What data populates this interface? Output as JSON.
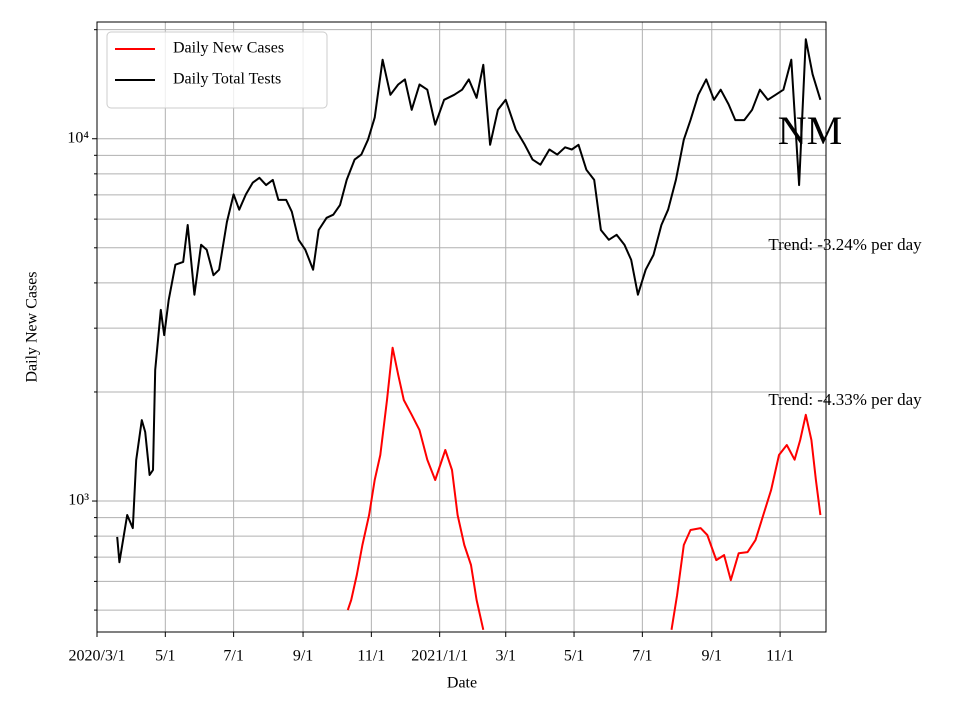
{
  "chart_data": {
    "type": "line",
    "xlabel": "Date",
    "ylabel": "Daily New Cases",
    "log_scale_y": true,
    "grid": true,
    "legend": "upper left",
    "xlim": [
      "2020-03-01",
      "2021-12-12"
    ],
    "xticks": [
      {
        "value": "2020-03-01",
        "label": "2020/3/1"
      },
      {
        "value": "2020-05-01",
        "label": "5/1"
      },
      {
        "value": "2020-07-01",
        "label": "7/1"
      },
      {
        "value": "2020-09-01",
        "label": "9/1"
      },
      {
        "value": "2020-11-01",
        "label": "11/1"
      },
      {
        "value": "2021-01-01",
        "label": "2021/1/1"
      },
      {
        "value": "2021-03-01",
        "label": "3/1"
      },
      {
        "value": "2021-05-01",
        "label": "5/1"
      },
      {
        "value": "2021-07-01",
        "label": "7/1"
      },
      {
        "value": "2021-09-01",
        "label": "9/1"
      },
      {
        "value": "2021-11-01",
        "label": "11/1"
      }
    ],
    "ylim": [
      435,
      21000
    ],
    "yticks": [
      {
        "value": 1000,
        "label": "10³"
      },
      {
        "value": 10000,
        "label": "10⁴"
      }
    ],
    "yminorticks": [
      500,
      600,
      700,
      800,
      900,
      2000,
      3000,
      4000,
      5000,
      6000,
      7000,
      8000,
      9000,
      20000
    ],
    "annotations": [
      "NM",
      "Trend: -3.24% per day",
      "Trend: -4.33% per day"
    ],
    "series": [
      {
        "name": "Daily New Cases",
        "color": "#ff0000",
        "x": [
          "2020-10-11",
          "2020-10-14",
          "2020-10-19",
          "2020-10-24",
          "2020-10-30",
          "2020-11-04",
          "2020-11-09",
          "2020-11-15",
          "2020-11-20",
          "2020-11-25",
          "2020-11-30",
          "2020-12-07",
          "2020-12-14",
          "2020-12-21",
          "2020-12-28",
          "2021-01-06",
          "2021-01-12",
          "2021-01-17",
          "2021-01-23",
          "2021-01-29",
          "2021-02-03",
          "2021-02-09",
          "2021-05-01",
          "2021-07-27",
          "2021-08-01",
          "2021-08-07",
          "2021-08-13",
          "2021-08-22",
          "2021-08-28",
          "2021-09-05",
          "2021-09-12",
          "2021-09-18",
          "2021-09-25",
          "2021-10-03",
          "2021-10-10",
          "2021-10-17",
          "2021-10-24",
          "2021-10-31",
          "2021-11-07",
          "2021-11-14",
          "2021-11-19",
          "2021-11-24",
          "2021-11-29",
          "2021-12-03",
          "2021-12-07"
        ],
        "values": [
          500,
          533,
          625,
          756,
          915,
          1143,
          1340,
          1900,
          2650,
          2230,
          1900,
          1730,
          1570,
          1300,
          1143,
          1383,
          1218,
          915,
          756,
          666,
          533,
          441,
          null,
          441,
          550,
          756,
          832,
          842,
          806,
          687,
          709,
          605,
          718,
          723,
          780,
          915,
          1072,
          1340,
          1428,
          1300,
          1474,
          1730,
          1474,
          1143,
          915
        ]
      },
      {
        "name": "Daily Total Tests",
        "color": "#000000",
        "x": [
          "2020-03-19",
          "2020-03-21",
          "2020-03-28",
          "2020-04-02",
          "2020-04-05",
          "2020-04-10",
          "2020-04-13",
          "2020-04-17",
          "2020-04-20",
          "2020-04-22",
          "2020-04-27",
          "2020-04-30",
          "2020-05-04",
          "2020-05-10",
          "2020-05-17",
          "2020-05-21",
          "2020-05-27",
          "2020-06-02",
          "2020-06-07",
          "2020-06-13",
          "2020-06-18",
          "2020-06-25",
          "2020-07-01",
          "2020-07-06",
          "2020-07-12",
          "2020-07-18",
          "2020-07-24",
          "2020-07-30",
          "2020-08-05",
          "2020-08-10",
          "2020-08-17",
          "2020-08-22",
          "2020-08-28",
          "2020-09-03",
          "2020-09-10",
          "2020-09-15",
          "2020-09-22",
          "2020-09-28",
          "2020-10-04",
          "2020-10-10",
          "2020-10-17",
          "2020-10-23",
          "2020-10-29",
          "2020-11-04",
          "2020-11-11",
          "2020-11-18",
          "2020-11-25",
          "2020-12-01",
          "2020-12-07",
          "2020-12-14",
          "2020-12-21",
          "2020-12-28",
          "2021-01-05",
          "2021-01-14",
          "2021-01-21",
          "2021-01-27",
          "2021-02-03",
          "2021-02-09",
          "2021-02-15",
          "2021-02-22",
          "2021-03-01",
          "2021-03-10",
          "2021-03-18",
          "2021-03-25",
          "2021-04-01",
          "2021-04-09",
          "2021-04-16",
          "2021-04-23",
          "2021-04-29",
          "2021-05-05",
          "2021-05-12",
          "2021-05-19",
          "2021-05-25",
          "2021-06-01",
          "2021-06-08",
          "2021-06-15",
          "2021-06-21",
          "2021-06-27",
          "2021-07-04",
          "2021-07-11",
          "2021-07-18",
          "2021-07-24",
          "2021-07-31",
          "2021-08-07",
          "2021-08-13",
          "2021-08-20",
          "2021-08-27",
          "2021-09-03",
          "2021-09-09",
          "2021-09-16",
          "2021-09-22",
          "2021-09-30",
          "2021-10-07",
          "2021-10-14",
          "2021-10-21",
          "2021-10-28",
          "2021-11-04",
          "2021-11-11",
          "2021-11-18",
          "2021-11-24",
          "2021-11-30",
          "2021-12-07"
        ],
        "values": [
          796,
          678,
          915,
          842,
          1298,
          1673,
          1551,
          1180,
          1218,
          2300,
          3370,
          2870,
          3590,
          4490,
          4570,
          5780,
          3710,
          5100,
          4940,
          4200,
          4350,
          5890,
          7020,
          6370,
          7020,
          7560,
          7800,
          7450,
          7700,
          6780,
          6780,
          6290,
          5260,
          4940,
          4350,
          5600,
          6050,
          6170,
          6560,
          7700,
          8760,
          9040,
          9940,
          11440,
          16530,
          13220,
          14120,
          14580,
          12020,
          14120,
          13660,
          10930,
          12810,
          13220,
          13660,
          14580,
          12970,
          16000,
          9620,
          12020,
          12810,
          10600,
          9620,
          8760,
          8480,
          9340,
          9040,
          9470,
          9340,
          9620,
          8210,
          7700,
          5600,
          5260,
          5430,
          5100,
          4630,
          3710,
          4350,
          4780,
          5780,
          6370,
          7700,
          9940,
          11260,
          13220,
          14580,
          12810,
          13660,
          12440,
          11260,
          11260,
          12020,
          13660,
          12810,
          13220,
          13660,
          16530,
          7450,
          18830,
          15060,
          12810
        ]
      }
    ]
  }
}
